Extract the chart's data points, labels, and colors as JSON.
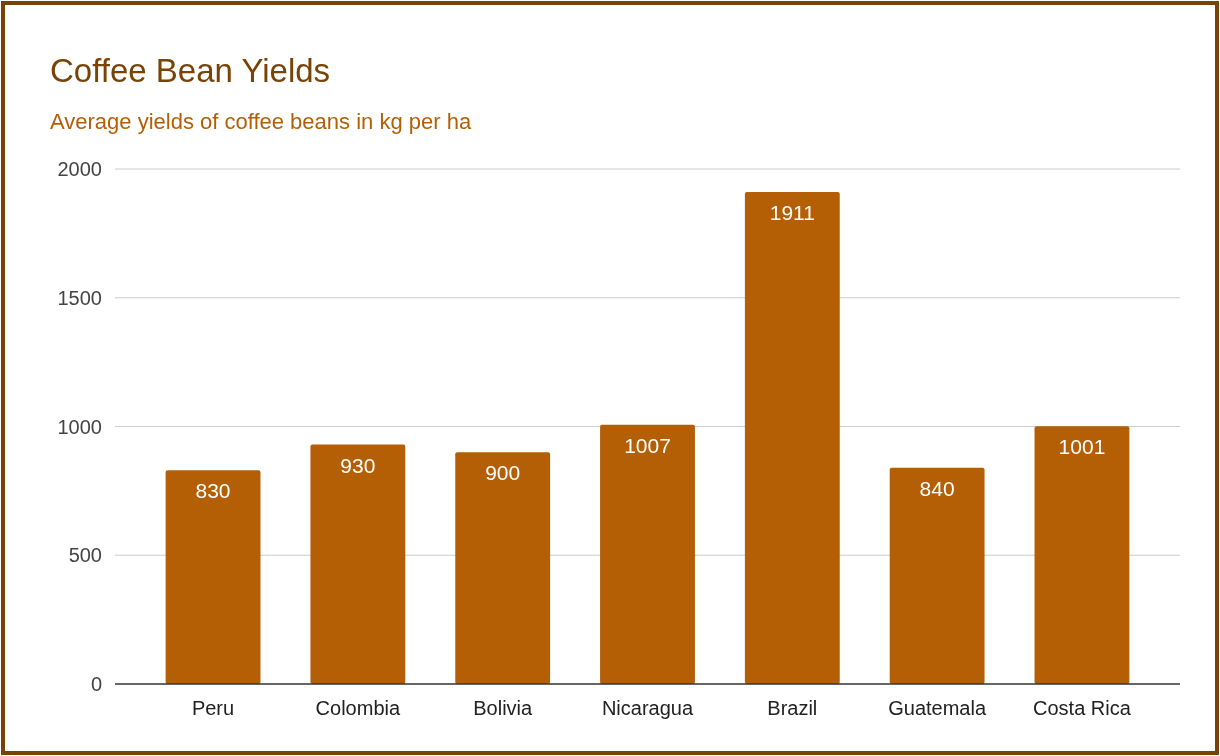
{
  "chart_data": {
    "type": "bar",
    "title": "Coffee Bean Yields",
    "subtitle": "Average yields of coffee beans in kg per ha",
    "categories": [
      "Peru",
      "Colombia",
      "Bolivia",
      "Nicaragua",
      "Brazil",
      "Guatemala",
      "Costa Rica"
    ],
    "values": [
      830,
      930,
      900,
      1007,
      1911,
      840,
      1001
    ],
    "color": "#b45f06",
    "ylim": [
      0,
      2000
    ],
    "yticks": [
      0,
      500,
      1000,
      1500,
      2000
    ],
    "grid": "y",
    "data_labels": true
  }
}
